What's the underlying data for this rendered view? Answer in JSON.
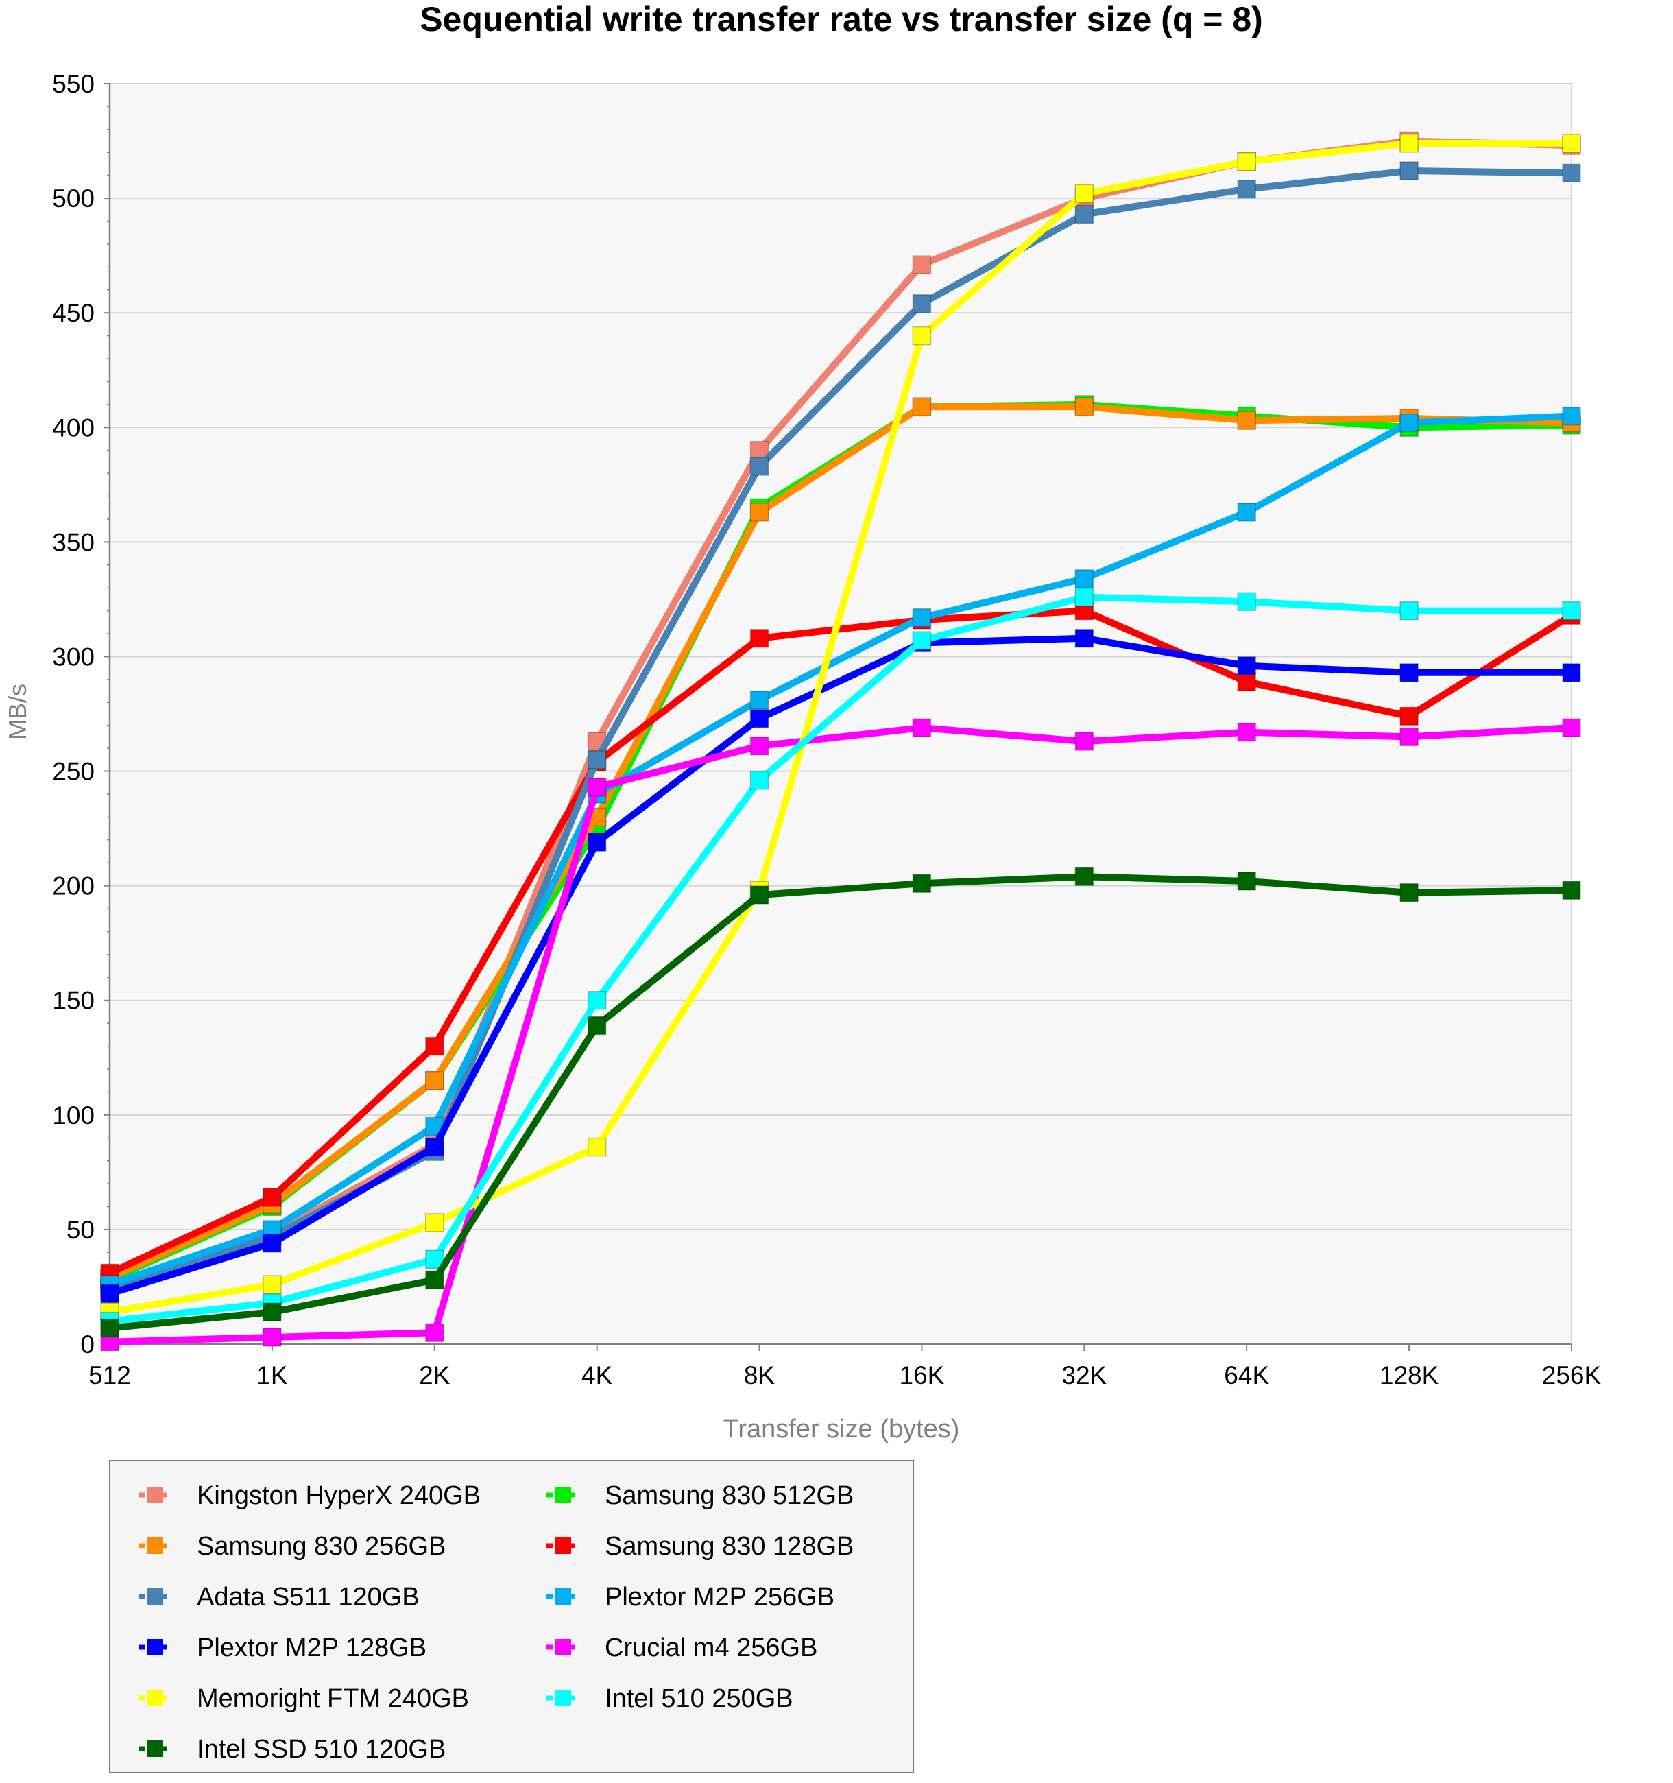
{
  "chart_data": {
    "type": "line",
    "title": "Sequential write transfer rate vs transfer size (q = 8)",
    "xlabel": "Transfer size (bytes)",
    "ylabel": "MB/s",
    "categories": [
      "512",
      "1K",
      "2K",
      "4K",
      "8K",
      "16K",
      "32K",
      "64K",
      "128K",
      "256K"
    ],
    "ylim": [
      0,
      550
    ],
    "yticks": [
      0,
      50,
      100,
      150,
      200,
      250,
      300,
      350,
      400,
      450,
      500,
      550
    ],
    "grid": "horizontal",
    "legend_position": "bottom-left",
    "series": [
      {
        "name": "Kingston HyperX 240GB",
        "color": "#f08070",
        "values": [
          24,
          48,
          87,
          263,
          390,
          471,
          500,
          516,
          525,
          523
        ]
      },
      {
        "name": "Samsung 830 512GB",
        "color": "#00ee00",
        "values": [
          28,
          60,
          115,
          225,
          365,
          409,
          410,
          405,
          400,
          401
        ]
      },
      {
        "name": "Samsung 830 256GB",
        "color": "#ff8c00",
        "values": [
          29,
          61,
          115,
          230,
          363,
          409,
          409,
          403,
          404,
          402
        ]
      },
      {
        "name": "Samsung 830 128GB",
        "color": "#ff0000",
        "values": [
          31,
          64,
          130,
          254,
          308,
          316,
          320,
          289,
          274,
          318
        ]
      },
      {
        "name": "Adata S511 120GB",
        "color": "#4682b4",
        "values": [
          23,
          47,
          84,
          255,
          383,
          454,
          493,
          504,
          512,
          511
        ]
      },
      {
        "name": "Plextor M2P 256GB",
        "color": "#00b0f0",
        "values": [
          26,
          50,
          95,
          240,
          281,
          317,
          334,
          363,
          402,
          405
        ]
      },
      {
        "name": "Plextor M2P 128GB",
        "color": "#0000ff",
        "values": [
          22,
          44,
          86,
          219,
          273,
          306,
          308,
          296,
          293,
          293
        ]
      },
      {
        "name": "Crucial m4 256GB",
        "color": "#ff00ff",
        "values": [
          1,
          3,
          5,
          243,
          261,
          269,
          263,
          267,
          265,
          269
        ]
      },
      {
        "name": "Memoright FTM 240GB",
        "color": "#ffff00",
        "values": [
          14,
          26,
          53,
          86,
          198,
          440,
          502,
          516,
          524,
          524
        ]
      },
      {
        "name": "Intel 510 250GB",
        "color": "#00ffff",
        "values": [
          10,
          18,
          37,
          150,
          246,
          307,
          326,
          324,
          320,
          320
        ]
      },
      {
        "name": "Intel SSD 510 120GB",
        "color": "#006400",
        "values": [
          7,
          14,
          28,
          139,
          196,
          201,
          204,
          202,
          197,
          198
        ]
      }
    ],
    "legend_order": [
      "Kingston HyperX 240GB",
      "Samsung 830 512GB",
      "Samsung 830 256GB",
      "Samsung 830 128GB",
      "Adata S511 120GB",
      "Plextor M2P 256GB",
      "Plextor M2P 128GB",
      "Crucial m4 256GB",
      "Memoright FTM 240GB",
      "Intel 510 250GB",
      "Intel SSD 510 120GB"
    ]
  },
  "colors": {
    "plot_background": "#f7f7f7",
    "grid": "#d4d4d4",
    "axis": "#808080",
    "legend_background": "#f5f5f5"
  }
}
